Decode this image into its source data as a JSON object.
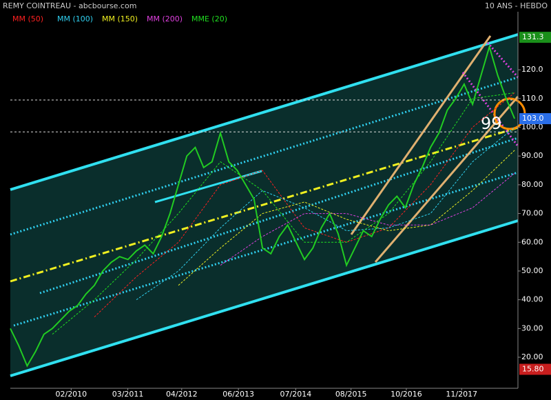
{
  "chart_data": {
    "type": "line",
    "title": "REMY COINTREAU - abcbourse.com",
    "subtitle": "10 ANS - HEBDO",
    "xlim": [
      0,
      60.4
    ],
    "ylim": [
      9.2,
      140.2
    ],
    "xticks": [
      {
        "value": 7.24,
        "label": "02/2010"
      },
      {
        "value": 13.98,
        "label": "03/2011"
      },
      {
        "value": 20.39,
        "label": "04/2012"
      },
      {
        "value": 27.14,
        "label": "06/2013"
      },
      {
        "value": 33.96,
        "label": "07/2014"
      },
      {
        "value": 40.54,
        "label": "08/2015"
      },
      {
        "value": 47.12,
        "label": "10/2016"
      },
      {
        "value": 53.7,
        "label": "11/2017"
      }
    ],
    "yticks": [
      {
        "value": 20,
        "label": "20.00"
      },
      {
        "value": 30,
        "label": "30.00"
      },
      {
        "value": 40,
        "label": "40.00"
      },
      {
        "value": 50,
        "label": "50.00"
      },
      {
        "value": 60,
        "label": "60.00"
      },
      {
        "value": 70,
        "label": "70.00"
      },
      {
        "value": 80,
        "label": "80.00"
      },
      {
        "value": 90,
        "label": "90.00"
      },
      {
        "value": 100,
        "label": "100.0"
      },
      {
        "value": 110,
        "label": "110.0"
      },
      {
        "value": 120,
        "label": "120.0"
      }
    ],
    "price": {
      "color": "#22cc22",
      "values": [
        30,
        24,
        17,
        22,
        28,
        30,
        33,
        36,
        38,
        42,
        45,
        50,
        53,
        55,
        54,
        57,
        59,
        56,
        62,
        70,
        80,
        90,
        93,
        86,
        88,
        98,
        88,
        85,
        80,
        75,
        58,
        56,
        62,
        66,
        60,
        54,
        58,
        65,
        70,
        63,
        52,
        58,
        64,
        62,
        68,
        73,
        76,
        72,
        80,
        86,
        93,
        98,
        106,
        110,
        115,
        108,
        118,
        128,
        118,
        110,
        103
      ]
    },
    "series": [
      {
        "name": "MM (50)",
        "color": "#ff2020",
        "x": [
          0,
          5,
          10,
          15,
          20,
          25,
          30,
          35,
          40,
          45,
          50,
          55,
          60
        ],
        "values": [
          null,
          null,
          34,
          48,
          60,
          80,
          85,
          65,
          60,
          65,
          80,
          100,
          112
        ]
      },
      {
        "name": "MM (100)",
        "color": "#30d0f0",
        "x": [
          0,
          5,
          10,
          15,
          20,
          25,
          30,
          35,
          40,
          45,
          50,
          55,
          60
        ],
        "values": [
          null,
          null,
          null,
          40,
          50,
          65,
          78,
          72,
          64,
          65,
          70,
          88,
          100
        ]
      },
      {
        "name": "MM (150)",
        "color": "#f0f020",
        "x": [
          0,
          5,
          10,
          15,
          20,
          25,
          30,
          35,
          40,
          45,
          50,
          55,
          60
        ],
        "values": [
          null,
          null,
          null,
          null,
          45,
          58,
          70,
          74,
          68,
          64,
          66,
          78,
          92
        ]
      },
      {
        "name": "MM (200)",
        "color": "#e040e0",
        "x": [
          0,
          5,
          10,
          15,
          20,
          25,
          30,
          35,
          40,
          45,
          50,
          55,
          60
        ],
        "values": [
          null,
          null,
          null,
          null,
          null,
          52,
          62,
          70,
          70,
          66,
          66,
          72,
          84
        ]
      },
      {
        "name": "MME (20)",
        "color": "#20e020",
        "x": [
          0,
          5,
          10,
          15,
          20,
          25,
          30,
          35,
          40,
          45,
          50,
          55,
          60
        ],
        "values": [
          null,
          28,
          40,
          54,
          70,
          88,
          78,
          60,
          60,
          70,
          88,
          110,
          112
        ]
      }
    ],
    "hlines": [
      109.5,
      98.4
    ],
    "price_labels": [
      {
        "value": 131.3,
        "label": "131.3",
        "color": "#1a8f1a"
      },
      {
        "value": 103.0,
        "label": "103.0",
        "color": "#2a6ee8"
      },
      {
        "value": 15.8,
        "label": "15.80",
        "color": "#c81e1e"
      }
    ],
    "annotation": "99"
  }
}
